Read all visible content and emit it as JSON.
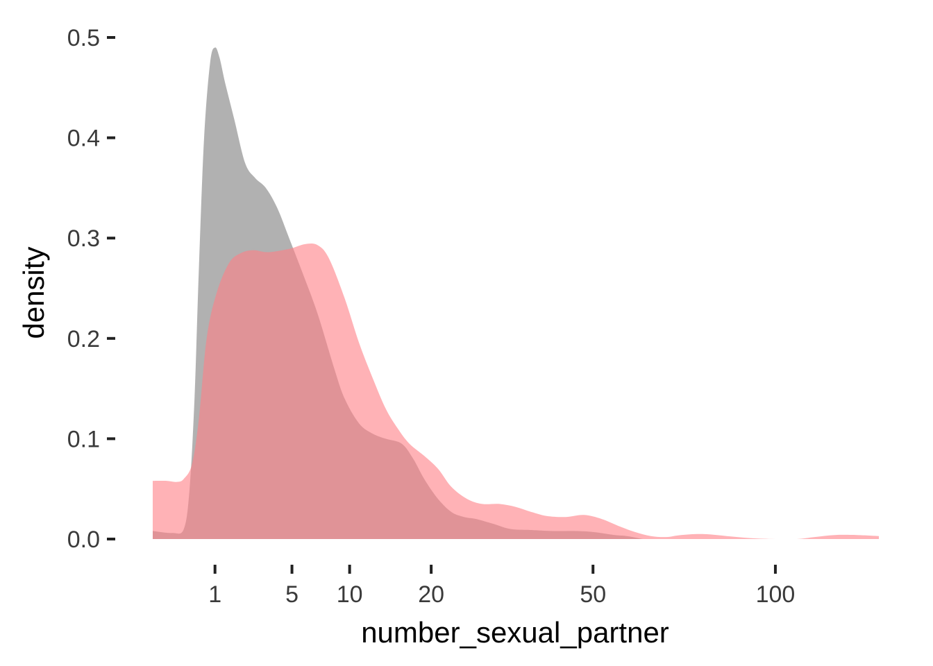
{
  "chart_data": {
    "type": "area",
    "xlabel": "number_sexual_partner",
    "ylabel": "density",
    "x_scale": "sqrt",
    "xlim": [
      0,
      136
    ],
    "ylim": [
      0,
      0.5
    ],
    "grid": false,
    "x_ticks": [
      1,
      5,
      10,
      20,
      50,
      100
    ],
    "x_tick_labels": [
      "1",
      "5",
      "10",
      "20",
      "50",
      "100"
    ],
    "y_ticks": [
      0,
      0.1,
      0.2,
      0.3,
      0.4,
      0.5
    ],
    "y_tick_labels": [
      "0.0",
      "0.1",
      "0.2",
      "0.3",
      "0.4",
      "0.5"
    ],
    "series": [
      {
        "color": "#9e9e9e",
        "opacity": 0.8,
        "points": [
          [
            0,
            0.008
          ],
          [
            0.1,
            0.006
          ],
          [
            0.25,
            0.01
          ],
          [
            0.35,
            0.05
          ],
          [
            0.45,
            0.14
          ],
          [
            0.55,
            0.27
          ],
          [
            0.68,
            0.4
          ],
          [
            0.85,
            0.475
          ],
          [
            1.0,
            0.49
          ],
          [
            1.15,
            0.48
          ],
          [
            1.35,
            0.455
          ],
          [
            1.7,
            0.42
          ],
          [
            2.2,
            0.375
          ],
          [
            2.7,
            0.36
          ],
          [
            3.3,
            0.35
          ],
          [
            4.0,
            0.33
          ],
          [
            4.8,
            0.3
          ],
          [
            5.8,
            0.265
          ],
          [
            7.0,
            0.225
          ],
          [
            8.5,
            0.17
          ],
          [
            9.5,
            0.14
          ],
          [
            11,
            0.115
          ],
          [
            12.5,
            0.105
          ],
          [
            14,
            0.1
          ],
          [
            16,
            0.095
          ],
          [
            17.5,
            0.08
          ],
          [
            19,
            0.06
          ],
          [
            21,
            0.04
          ],
          [
            23,
            0.027
          ],
          [
            25,
            0.022
          ],
          [
            27,
            0.02
          ],
          [
            30,
            0.015
          ],
          [
            33,
            0.01
          ],
          [
            37,
            0.009
          ],
          [
            41,
            0.008
          ],
          [
            46,
            0.008
          ],
          [
            50,
            0.007
          ],
          [
            55,
            0.004
          ],
          [
            58,
            0.003
          ],
          [
            62,
            0.0
          ]
        ]
      },
      {
        "color": "#ff7f86",
        "opacity": 0.6,
        "points": [
          [
            0,
            0.058
          ],
          [
            0.05,
            0.058
          ],
          [
            0.15,
            0.057
          ],
          [
            0.25,
            0.06
          ],
          [
            0.4,
            0.075
          ],
          [
            0.55,
            0.12
          ],
          [
            0.75,
            0.2
          ],
          [
            1.05,
            0.245
          ],
          [
            1.5,
            0.275
          ],
          [
            2.0,
            0.285
          ],
          [
            2.6,
            0.288
          ],
          [
            3.3,
            0.286
          ],
          [
            4.0,
            0.287
          ],
          [
            5.0,
            0.29
          ],
          [
            6.0,
            0.294
          ],
          [
            7.0,
            0.293
          ],
          [
            8.0,
            0.28
          ],
          [
            9.5,
            0.24
          ],
          [
            11,
            0.195
          ],
          [
            12.5,
            0.16
          ],
          [
            14,
            0.13
          ],
          [
            15.5,
            0.11
          ],
          [
            17,
            0.095
          ],
          [
            19,
            0.083
          ],
          [
            21,
            0.07
          ],
          [
            23,
            0.052
          ],
          [
            25.5,
            0.04
          ],
          [
            28,
            0.035
          ],
          [
            31,
            0.035
          ],
          [
            34,
            0.032
          ],
          [
            37,
            0.027
          ],
          [
            40,
            0.023
          ],
          [
            44,
            0.022
          ],
          [
            48,
            0.024
          ],
          [
            52,
            0.02
          ],
          [
            56,
            0.013
          ],
          [
            60,
            0.007
          ],
          [
            64,
            0.003
          ],
          [
            68,
            0.002
          ],
          [
            72,
            0.004
          ],
          [
            78,
            0.005
          ],
          [
            85,
            0.003
          ],
          [
            92,
            0.001
          ],
          [
            100,
            0.0
          ],
          [
            107,
            0.0
          ],
          [
            113,
            0.002
          ],
          [
            120,
            0.004
          ],
          [
            128,
            0.004
          ],
          [
            136,
            0.003
          ]
        ]
      }
    ]
  }
}
